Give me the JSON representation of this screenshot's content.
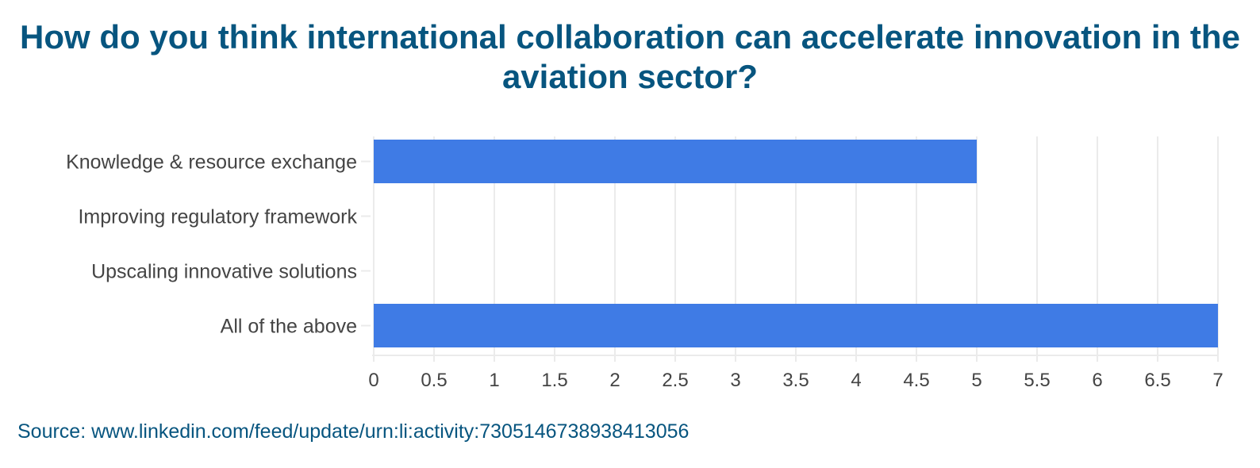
{
  "chart_data": {
    "type": "bar",
    "orientation": "horizontal",
    "title": "How do you think international collaboration can accelerate innovation in the aviation sector?",
    "categories": [
      "Knowledge & resource exchange",
      "Improving regulatory framework",
      "Upscaling innovative solutions",
      "All of the above"
    ],
    "values": [
      5,
      0,
      0,
      7
    ],
    "xlim": [
      0,
      7
    ],
    "xticks": [
      "0",
      "0.5",
      "1",
      "1.5",
      "2",
      "2.5",
      "3",
      "3.5",
      "4",
      "4.5",
      "5",
      "5.5",
      "6",
      "6.5",
      "7"
    ],
    "xlabel": "",
    "ylabel": "",
    "grid": true,
    "bar_color": "#3f7be5",
    "source": "Source: www.linkedin.com/feed/update/urn:li:activity:7305146738938413056"
  }
}
